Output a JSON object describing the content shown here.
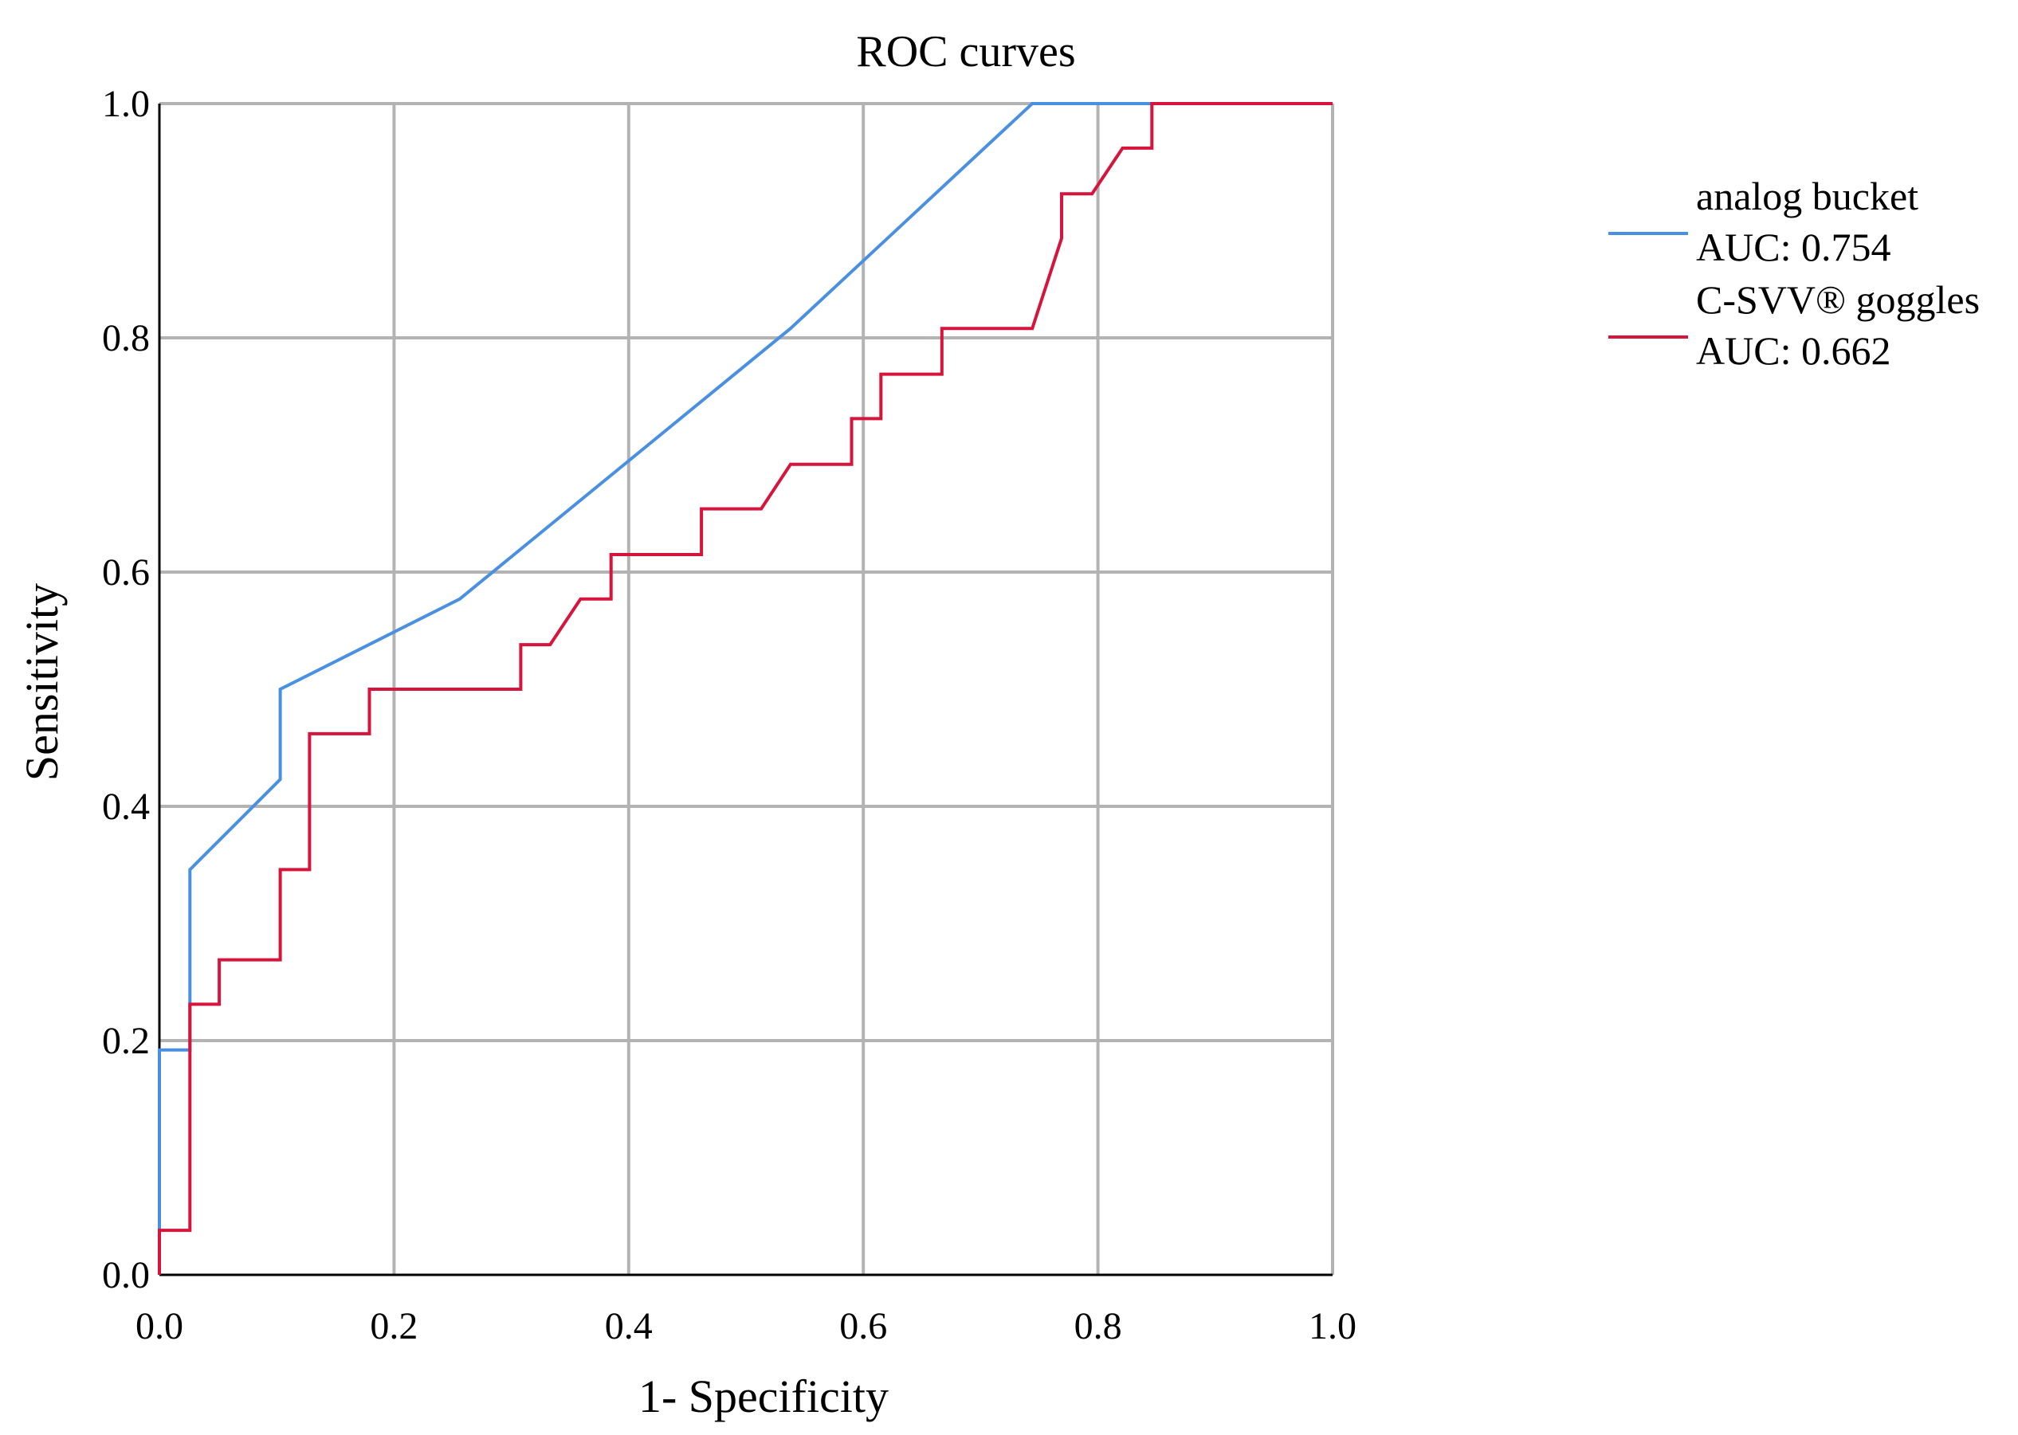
{
  "chart_data": {
    "type": "line",
    "title": "ROC curves",
    "xlabel": "1- Specificity",
    "ylabel": "Sensitivity",
    "xlim": [
      0,
      1
    ],
    "ylim": [
      0,
      1
    ],
    "grid": true,
    "x_ticks": [
      {
        "value": 0.0,
        "label": "0.0"
      },
      {
        "value": 0.2,
        "label": "0.2"
      },
      {
        "value": 0.4,
        "label": "0.4"
      },
      {
        "value": 0.6,
        "label": "0.6"
      },
      {
        "value": 0.8,
        "label": "0.8"
      },
      {
        "value": 1.0,
        "label": "1.0"
      }
    ],
    "y_ticks": [
      {
        "value": 0.0,
        "label": "0.0"
      },
      {
        "value": 0.2,
        "label": "0.2"
      },
      {
        "value": 0.4,
        "label": "0.4"
      },
      {
        "value": 0.6,
        "label": "0.6"
      },
      {
        "value": 0.8,
        "label": "0.8"
      },
      {
        "value": 1.0,
        "label": "1.0"
      }
    ],
    "legend_position": "right",
    "series": [
      {
        "name": "analog bucket",
        "auc_label": "AUC: 0.754",
        "color": "#4a90e2",
        "x": [
          0,
          0,
          0.026,
          0.026,
          0.103,
          0.103,
          0.256,
          0.538,
          0.744,
          0.769,
          1.0
        ],
        "y": [
          0,
          0.192,
          0.192,
          0.346,
          0.423,
          0.5,
          0.577,
          0.808,
          1.0,
          1.0,
          1.0
        ]
      },
      {
        "name": "C-SVV® goggles",
        "auc_label": "AUC: 0.662",
        "color": "#d6143c",
        "x": [
          0,
          0,
          0.026,
          0.026,
          0.051,
          0.051,
          0.103,
          0.103,
          0.128,
          0.128,
          0.179,
          0.179,
          0.308,
          0.308,
          0.333,
          0.359,
          0.385,
          0.385,
          0.462,
          0.462,
          0.513,
          0.538,
          0.59,
          0.59,
          0.615,
          0.615,
          0.667,
          0.667,
          0.744,
          0.769,
          0.769,
          0.795,
          0.821,
          0.846,
          0.846,
          1.0
        ],
        "y": [
          0,
          0.038,
          0.038,
          0.231,
          0.231,
          0.269,
          0.269,
          0.346,
          0.346,
          0.462,
          0.462,
          0.5,
          0.5,
          0.538,
          0.538,
          0.577,
          0.577,
          0.615,
          0.615,
          0.654,
          0.654,
          0.692,
          0.692,
          0.731,
          0.731,
          0.769,
          0.769,
          0.808,
          0.808,
          0.885,
          0.923,
          0.923,
          0.962,
          0.962,
          1.0,
          1.0
        ]
      }
    ]
  }
}
